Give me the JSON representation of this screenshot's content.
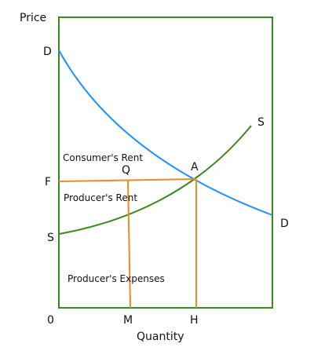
{
  "diagram": {
    "axis_labels": {
      "y": "Price",
      "x": "Quantity",
      "origin": "0"
    },
    "point_labels": {
      "D_top": "D",
      "D_right": "D",
      "S_left": "S",
      "S_top": "S",
      "F": "F",
      "Q": "Q",
      "A": "A",
      "M": "M",
      "H": "H"
    },
    "region_labels": {
      "consumers_rent": "Consumer's Rent",
      "producers_rent": "Producer's Rent",
      "producers_expenses": "Producer's Expenses"
    },
    "colors": {
      "frame": "#3a8a1e",
      "demand_curve": "#1e90ff",
      "supply_curve": "#3a8a1e",
      "guide_lines": "#f08a24",
      "text": "#111111"
    }
  }
}
